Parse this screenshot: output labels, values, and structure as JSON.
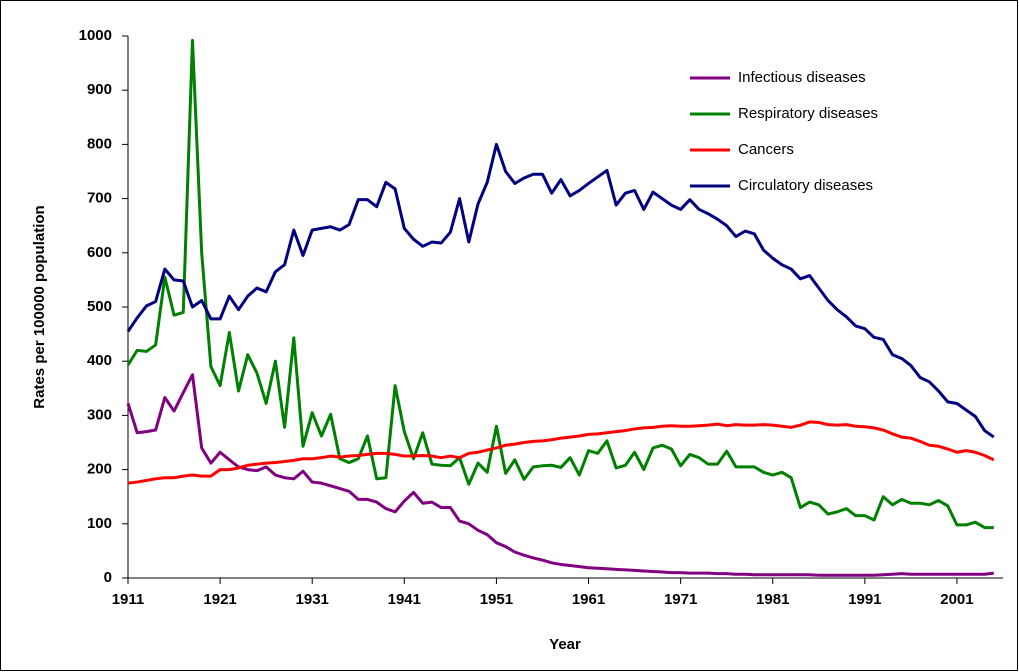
{
  "chart_data": {
    "type": "line",
    "x_label": "Year",
    "y_label": "Rates per 100000 population",
    "x": [
      1911,
      1912,
      1913,
      1914,
      1915,
      1916,
      1917,
      1918,
      1919,
      1920,
      1921,
      1922,
      1923,
      1924,
      1925,
      1926,
      1927,
      1928,
      1929,
      1930,
      1931,
      1932,
      1933,
      1934,
      1935,
      1936,
      1937,
      1938,
      1939,
      1940,
      1941,
      1942,
      1943,
      1944,
      1945,
      1946,
      1947,
      1948,
      1949,
      1950,
      1951,
      1952,
      1953,
      1954,
      1955,
      1956,
      1957,
      1958,
      1959,
      1960,
      1961,
      1962,
      1963,
      1964,
      1965,
      1966,
      1967,
      1968,
      1969,
      1970,
      1971,
      1972,
      1973,
      1974,
      1975,
      1976,
      1977,
      1978,
      1979,
      1980,
      1981,
      1982,
      1983,
      1984,
      1985,
      1986,
      1987,
      1988,
      1989,
      1990,
      1991,
      1992,
      1993,
      1994,
      1995,
      1996,
      1997,
      1998,
      1999,
      2000,
      2001,
      2002,
      2003,
      2004,
      2005
    ],
    "series": [
      {
        "name": "Infectious diseases",
        "color": "#800080",
        "values": [
          322,
          268,
          270,
          273,
          333,
          308,
          342,
          375,
          240,
          212,
          232,
          218,
          205,
          200,
          198,
          205,
          190,
          185,
          183,
          197,
          177,
          175,
          170,
          165,
          160,
          145,
          145,
          140,
          128,
          122,
          142,
          158,
          138,
          140,
          130,
          130,
          105,
          100,
          88,
          80,
          65,
          58,
          48,
          42,
          37,
          33,
          28,
          25,
          23,
          21,
          19,
          18,
          17,
          16,
          15,
          14,
          13,
          12,
          11,
          10,
          10,
          9,
          9,
          9,
          8,
          8,
          7,
          7,
          6,
          6,
          6,
          6,
          6,
          6,
          6,
          5,
          5,
          5,
          5,
          5,
          5,
          5,
          6,
          7,
          8,
          7,
          7,
          7,
          7,
          7,
          7,
          7,
          7,
          7,
          9
        ]
      },
      {
        "name": "Respiratory diseases",
        "color": "#008000",
        "values": [
          393,
          420,
          418,
          430,
          555,
          485,
          490,
          992,
          600,
          390,
          355,
          453,
          345,
          412,
          378,
          322,
          400,
          278,
          443,
          243,
          305,
          262,
          302,
          220,
          213,
          220,
          262,
          183,
          185,
          355,
          270,
          220,
          268,
          210,
          208,
          207,
          222,
          173,
          212,
          195,
          280,
          193,
          218,
          182,
          205,
          207,
          208,
          204,
          222,
          190,
          235,
          230,
          253,
          203,
          208,
          232,
          200,
          240,
          245,
          238,
          207,
          228,
          222,
          210,
          210,
          234,
          205,
          205,
          205,
          195,
          190,
          195,
          185,
          130,
          140,
          135,
          118,
          122,
          128,
          115,
          115,
          107,
          150,
          135,
          145,
          138,
          138,
          135,
          143,
          133,
          98,
          98,
          103,
          93,
          93
        ]
      },
      {
        "name": "Cancers",
        "color": "#ff0000",
        "values": [
          175,
          177,
          180,
          183,
          185,
          185,
          188,
          190,
          188,
          188,
          200,
          200,
          203,
          208,
          210,
          212,
          213,
          215,
          217,
          220,
          220,
          222,
          225,
          223,
          225,
          226,
          228,
          230,
          230,
          228,
          225,
          225,
          226,
          225,
          222,
          225,
          222,
          230,
          232,
          236,
          240,
          245,
          247,
          250,
          252,
          253,
          255,
          258,
          260,
          262,
          265,
          266,
          268,
          270,
          272,
          275,
          277,
          278,
          280,
          281,
          280,
          280,
          281,
          282,
          284,
          281,
          283,
          282,
          282,
          283,
          282,
          280,
          278,
          282,
          288,
          287,
          283,
          282,
          283,
          280,
          279,
          277,
          273,
          266,
          260,
          258,
          252,
          245,
          243,
          238,
          232,
          235,
          232,
          226,
          218
        ]
      },
      {
        "name": "Circulatory diseases",
        "color": "#000080",
        "values": [
          455,
          480,
          502,
          510,
          570,
          550,
          548,
          500,
          512,
          478,
          478,
          520,
          495,
          520,
          535,
          528,
          565,
          578,
          642,
          595,
          642,
          645,
          648,
          642,
          652,
          698,
          698,
          685,
          730,
          718,
          645,
          625,
          612,
          620,
          618,
          638,
          700,
          620,
          690,
          730,
          800,
          750,
          728,
          738,
          745,
          745,
          710,
          735,
          705,
          715,
          728,
          740,
          752,
          688,
          710,
          715,
          680,
          712,
          700,
          688,
          680,
          698,
          680,
          672,
          662,
          650,
          630,
          640,
          635,
          605,
          590,
          578,
          570,
          552,
          558,
          535,
          512,
          495,
          482,
          465,
          460,
          444,
          440,
          412,
          405,
          392,
          370,
          362,
          345,
          325,
          322,
          310,
          298,
          272,
          260
        ]
      }
    ],
    "xlim": [
      1911,
      2006
    ],
    "xticks": [
      1911,
      1921,
      1931,
      1941,
      1951,
      1961,
      1971,
      1981,
      1991,
      2001
    ],
    "ylim": [
      0,
      1000
    ],
    "yticks": [
      0,
      100,
      200,
      300,
      400,
      500,
      600,
      700,
      800,
      900,
      1000
    ],
    "grid": false,
    "legend": "upper-right"
  }
}
